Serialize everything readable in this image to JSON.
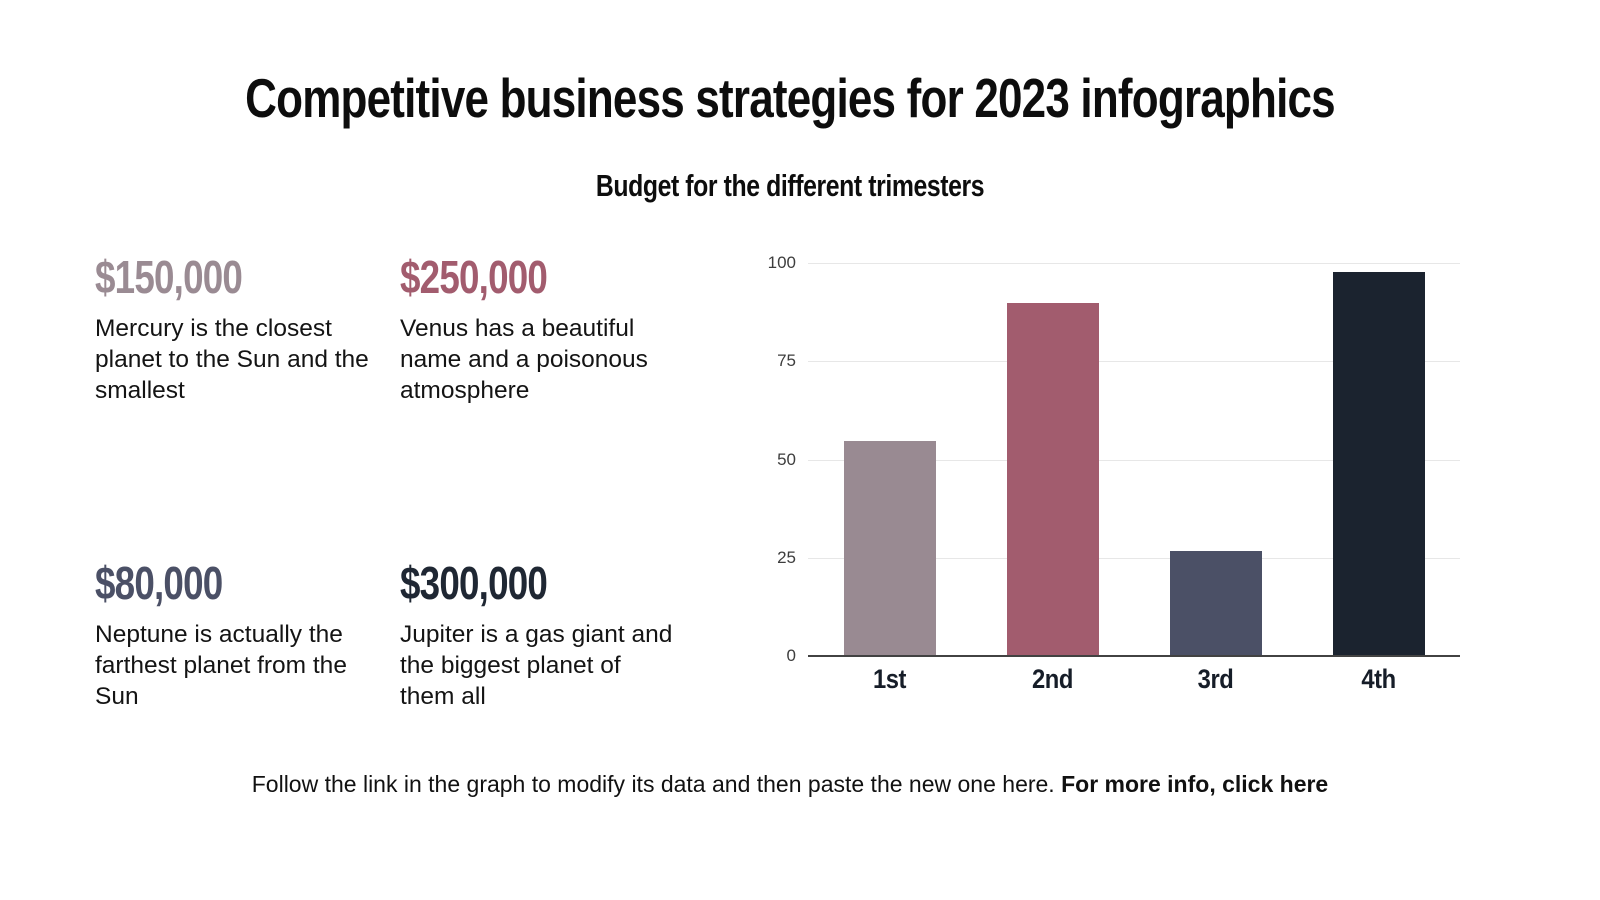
{
  "title": "Competitive business strategies for 2023 infographics",
  "subtitle": "Budget for the different trimesters",
  "stats": [
    {
      "value": "$150,000",
      "color": "#9a8b93",
      "description": "Mercury is the closest planet to the Sun and the smallest"
    },
    {
      "value": "$250,000",
      "color": "#a25c6e",
      "description": "Venus has a beautiful name and a poisonous atmosphere"
    },
    {
      "value": "$80,000",
      "color": "#4b5066",
      "description": "Neptune is actually the farthest planet from the Sun"
    },
    {
      "value": "$300,000",
      "color": "#1f2733",
      "description": "Jupiter is a gas giant and the biggest planet of them all"
    }
  ],
  "footer": {
    "text": "Follow the link in the graph to modify its data and then paste the new one here.",
    "link_text": "For more info, click here"
  },
  "chart_data": {
    "type": "bar",
    "categories": [
      "1st",
      "2nd",
      "3rd",
      "4th"
    ],
    "values": [
      55,
      90,
      27,
      98
    ],
    "bar_colors": [
      "#998a92",
      "#a25c6e",
      "#4b5066",
      "#1b232f"
    ],
    "title": "Budget for the different trimesters",
    "xlabel": "",
    "ylabel": "",
    "ylim": [
      0,
      100
    ],
    "yticks": [
      0,
      25,
      50,
      75,
      100
    ],
    "grid": true,
    "legend_position": "none"
  }
}
